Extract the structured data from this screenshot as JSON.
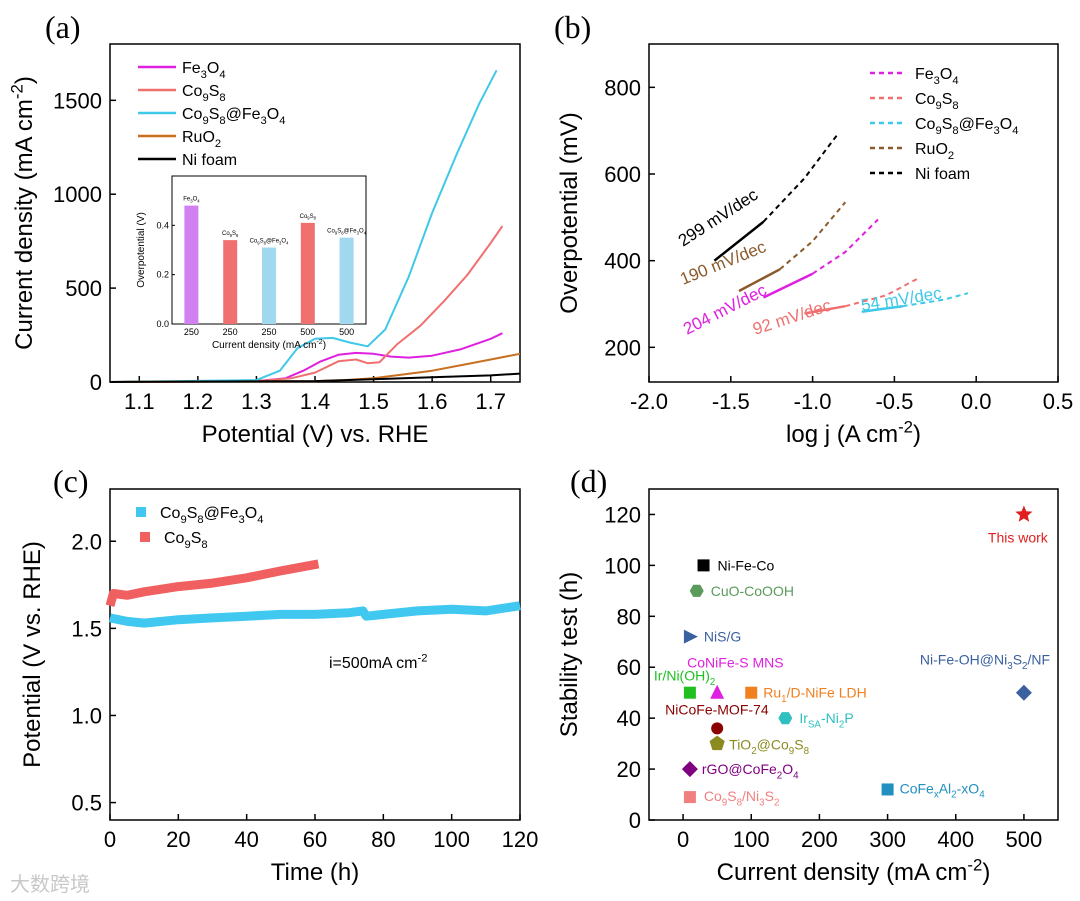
{
  "watermark": "大数跨境",
  "chart_data": [
    {
      "id": "a",
      "panel_label": "(a)",
      "type": "line",
      "xlabel": "Potential (V) vs. RHE",
      "ylabel": "Current density (mA cm-2)",
      "xlim": [
        1.05,
        1.75
      ],
      "ylim": [
        0,
        1800
      ],
      "xticks": [
        "1.1",
        "1.2",
        "1.3",
        "1.4",
        "1.5",
        "1.6",
        "1.7"
      ],
      "yticks": [
        "0",
        "500",
        "1000",
        "1500"
      ],
      "legend_position": "top-left",
      "series": [
        {
          "name": "Fe3O4",
          "color": "#e020e0",
          "x": [
            1.05,
            1.3,
            1.35,
            1.38,
            1.41,
            1.44,
            1.47,
            1.5,
            1.53,
            1.56,
            1.6,
            1.65,
            1.7,
            1.72
          ],
          "y": [
            0,
            5,
            20,
            60,
            110,
            145,
            155,
            150,
            135,
            130,
            140,
            175,
            230,
            260
          ]
        },
        {
          "name": "Co9S8",
          "color": "#f07070",
          "x": [
            1.05,
            1.3,
            1.36,
            1.4,
            1.44,
            1.47,
            1.49,
            1.51,
            1.54,
            1.58,
            1.62,
            1.66,
            1.7,
            1.72
          ],
          "y": [
            0,
            5,
            20,
            50,
            110,
            120,
            100,
            105,
            200,
            300,
            430,
            570,
            740,
            830
          ]
        },
        {
          "name": "Co9S8@Fe3O4",
          "color": "#40c8e8",
          "x": [
            1.05,
            1.3,
            1.34,
            1.37,
            1.4,
            1.43,
            1.46,
            1.49,
            1.52,
            1.56,
            1.6,
            1.64,
            1.68,
            1.71
          ],
          "y": [
            0,
            10,
            60,
            180,
            230,
            235,
            210,
            190,
            280,
            560,
            900,
            1200,
            1480,
            1660
          ]
        },
        {
          "name": "RuO2",
          "color": "#c87020",
          "x": [
            1.05,
            1.4,
            1.45,
            1.5,
            1.55,
            1.6,
            1.65,
            1.7,
            1.75
          ],
          "y": [
            0,
            5,
            10,
            20,
            40,
            60,
            90,
            120,
            150
          ]
        },
        {
          "name": "Ni foam",
          "color": "#000000",
          "x": [
            1.05,
            1.4,
            1.5,
            1.6,
            1.7,
            1.75
          ],
          "y": [
            0,
            5,
            15,
            25,
            35,
            45
          ]
        }
      ],
      "inset": {
        "type": "bar",
        "ylabel": "Overpotential (V)",
        "xlabel": "Current density (mA cm-2)",
        "ylim": [
          0,
          0.6
        ],
        "yticks": [
          "0.0",
          "0.2",
          "0.4"
        ],
        "bars": [
          {
            "category": "250",
            "label": "Fe3O4",
            "value": 0.48,
            "color": "#d080f0"
          },
          {
            "category": "250",
            "label": "Co9S8",
            "value": 0.34,
            "color": "#f07070"
          },
          {
            "category": "250",
            "label": "Co9S8@Fe3O4",
            "value": 0.31,
            "color": "#a0d8f0"
          },
          {
            "category": "500",
            "label": "Co9S8",
            "value": 0.41,
            "color": "#f07070"
          },
          {
            "category": "500",
            "label": "Co9S8@Fe3O4",
            "value": 0.35,
            "color": "#a0d8f0"
          }
        ]
      }
    },
    {
      "id": "b",
      "panel_label": "(b)",
      "type": "line",
      "xlabel": "log j (A cm-2)",
      "ylabel": "Overpotential (mV)",
      "xlim": [
        -2.0,
        0.5
      ],
      "ylim": [
        120,
        900
      ],
      "xticks": [
        "-2.0",
        "-1.5",
        "-1.0",
        "-0.5",
        "0.0",
        "0.5"
      ],
      "yticks": [
        "200",
        "400",
        "600",
        "800"
      ],
      "legend_position": "top-right",
      "series": [
        {
          "name": "Fe3O4",
          "color": "#e020e0",
          "fit_x": [
            -1.3,
            -1.0
          ],
          "fit_y": [
            315,
            370
          ],
          "x": [
            -1.0,
            -0.8,
            -0.6
          ],
          "y": [
            370,
            420,
            495
          ]
        },
        {
          "name": "Co9S8",
          "color": "#f07070",
          "fit_x": [
            -1.05,
            -0.8
          ],
          "fit_y": [
            278,
            295
          ],
          "x": [
            -0.8,
            -0.55,
            -0.35
          ],
          "y": [
            295,
            320,
            360
          ]
        },
        {
          "name": "Co9S8@Fe3O4",
          "color": "#40c8e8",
          "fit_x": [
            -0.7,
            -0.45
          ],
          "fit_y": [
            282,
            295
          ],
          "x": [
            -0.45,
            -0.2,
            -0.05
          ],
          "y": [
            295,
            310,
            325
          ]
        },
        {
          "name": "RuO2",
          "color": "#8b5a2b",
          "fit_x": [
            -1.45,
            -1.2
          ],
          "fit_y": [
            330,
            380
          ],
          "x": [
            -1.2,
            -1.0,
            -0.8
          ],
          "y": [
            380,
            445,
            535
          ]
        },
        {
          "name": "Ni foam",
          "color": "#000000",
          "fit_x": [
            -1.6,
            -1.3
          ],
          "fit_y": [
            400,
            490
          ],
          "x": [
            -1.3,
            -1.05,
            -0.85
          ],
          "y": [
            490,
            590,
            690
          ]
        }
      ],
      "annotations": [
        {
          "text": "299 mV/dec",
          "color": "#000000"
        },
        {
          "text": "190 mV/dec",
          "color": "#8b5a2b"
        },
        {
          "text": "204 mV/dec",
          "color": "#e020e0"
        },
        {
          "text": "92 mV/dec",
          "color": "#f07070"
        },
        {
          "text": "54 mV/dec",
          "color": "#40c8e8"
        }
      ]
    },
    {
      "id": "c",
      "panel_label": "(c)",
      "type": "line",
      "xlabel": "Time (h)",
      "ylabel": "Potential (V vs. RHE)",
      "xlim": [
        0,
        120
      ],
      "ylim": [
        0.4,
        2.3
      ],
      "xticks": [
        "0",
        "20",
        "40",
        "60",
        "80",
        "100",
        "120"
      ],
      "yticks": [
        "0.5",
        "1.0",
        "1.5",
        "2.0"
      ],
      "legend_position": "top-left",
      "annotation": "i=500mA cm-2",
      "series": [
        {
          "name": "Co9S8@Fe3O4",
          "color": "#40c8f0",
          "x": [
            0,
            5,
            10,
            20,
            30,
            40,
            50,
            60,
            70,
            74,
            75,
            80,
            90,
            100,
            110,
            120
          ],
          "y": [
            1.56,
            1.54,
            1.53,
            1.55,
            1.56,
            1.57,
            1.58,
            1.58,
            1.59,
            1.6,
            1.57,
            1.58,
            1.6,
            1.61,
            1.6,
            1.63
          ]
        },
        {
          "name": "Co9S8",
          "color": "#f06060",
          "x": [
            0,
            1,
            5,
            10,
            20,
            30,
            40,
            50,
            61
          ],
          "y": [
            1.63,
            1.7,
            1.69,
            1.71,
            1.74,
            1.76,
            1.79,
            1.83,
            1.87
          ]
        }
      ]
    },
    {
      "id": "d",
      "panel_label": "(d)",
      "type": "scatter",
      "xlabel": "Current density (mA cm-2)",
      "ylabel": "Stability test (h)",
      "xlim": [
        -50,
        550
      ],
      "ylim": [
        0,
        130
      ],
      "xticks": [
        "0",
        "100",
        "200",
        "300",
        "400",
        "500"
      ],
      "yticks": [
        "0",
        "20",
        "40",
        "60",
        "80",
        "100",
        "120"
      ],
      "points": [
        {
          "label": "Ni-Fe-Co",
          "x": 30,
          "y": 100,
          "marker": "square",
          "color": "#000000",
          "label_color": "#000000"
        },
        {
          "label": "CuO-CoOOH",
          "x": 20,
          "y": 90,
          "marker": "hexagon",
          "color": "#5a9a5a",
          "label_color": "#5a9a5a"
        },
        {
          "label": "NiS/G",
          "x": 10,
          "y": 72,
          "marker": "triangle-right",
          "color": "#3a60a0",
          "label_color": "#3a60a0"
        },
        {
          "label": "CoNiFe-S MNS",
          "x": 50,
          "y": 50,
          "marker": "triangle-up",
          "color": "#e020e0",
          "label_color": "#e020e0"
        },
        {
          "label": "Ir/Ni(OH)2",
          "x": 10,
          "y": 50,
          "marker": "square",
          "color": "#20c020",
          "label_color": "#20c020"
        },
        {
          "label": "Ru1/D-NiFe LDH",
          "x": 100,
          "y": 50,
          "marker": "square",
          "color": "#f08020",
          "label_color": "#f08020"
        },
        {
          "label": "NiCoFe-MOF-74",
          "x": 50,
          "y": 36,
          "marker": "circle",
          "color": "#8b0000",
          "label_color": "#8b0000"
        },
        {
          "label": "IrSA-Ni2P",
          "x": 150,
          "y": 40,
          "marker": "hexagon",
          "color": "#30c0c0",
          "label_color": "#30c0c0"
        },
        {
          "label": "TiO2@Co9S8",
          "x": 50,
          "y": 30,
          "marker": "pentagon",
          "color": "#8b8b20",
          "label_color": "#8b8b20"
        },
        {
          "label": "rGO@CoFe2O4",
          "x": 10,
          "y": 20,
          "marker": "diamond",
          "color": "#800080",
          "label_color": "#800080"
        },
        {
          "label": "Co9S8/Ni3S2",
          "x": 10,
          "y": 9,
          "marker": "square",
          "color": "#f08080",
          "label_color": "#f08080"
        },
        {
          "label": "CoFexAl2-xO4",
          "x": 300,
          "y": 12,
          "marker": "square",
          "color": "#2090c0",
          "label_color": "#2090c0"
        },
        {
          "label": "Ni-Fe-OH@Ni3S2/NF",
          "x": 500,
          "y": 50,
          "marker": "diamond",
          "color": "#3a60a0",
          "label_color": "#3a60a0"
        },
        {
          "label": "This work",
          "x": 500,
          "y": 120,
          "marker": "star",
          "color": "#e02020",
          "label_color": "#e02020"
        }
      ]
    }
  ]
}
